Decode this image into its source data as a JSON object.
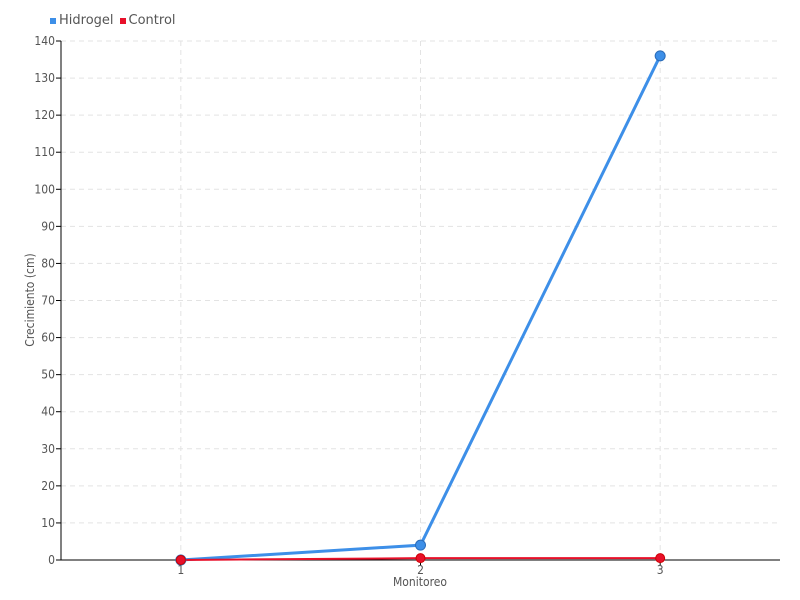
{
  "chart_data": {
    "type": "line",
    "title": "",
    "xlabel": "Monitoreo",
    "ylabel": "Crecimiento (cm)",
    "categories": [
      "1",
      "2",
      "3"
    ],
    "ylim": [
      0,
      140
    ],
    "yticks": [
      0,
      10,
      20,
      30,
      40,
      50,
      60,
      70,
      80,
      90,
      100,
      110,
      120,
      130,
      140
    ],
    "grid": true,
    "legend_position": "top-left",
    "series": [
      {
        "name": "Hidrogel",
        "color": "#3d8fe8",
        "values": [
          0,
          4,
          136
        ]
      },
      {
        "name": "Control",
        "color": "#e8102a",
        "values": [
          0,
          0.5,
          0.5
        ]
      }
    ]
  }
}
